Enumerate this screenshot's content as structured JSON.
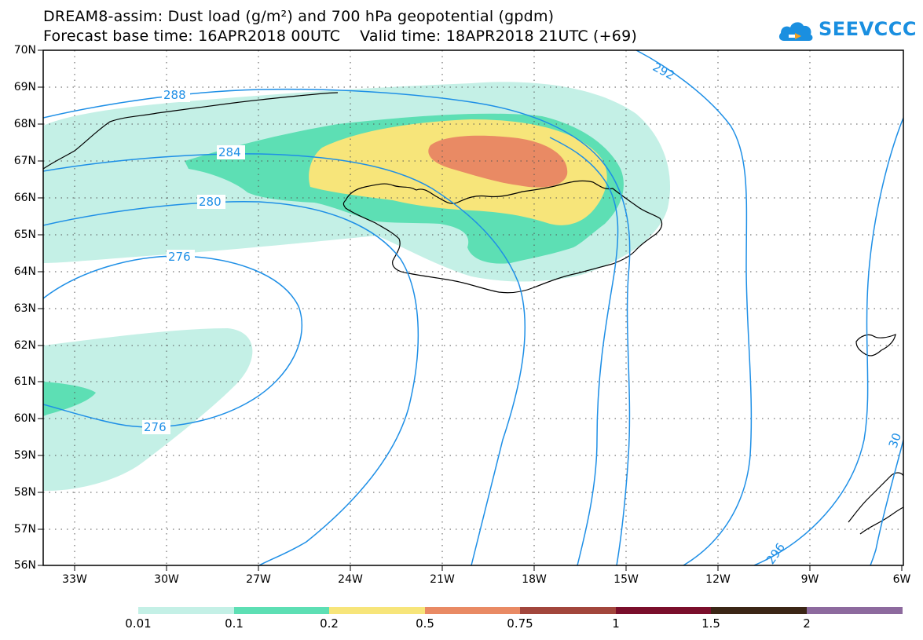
{
  "title": {
    "line1": "DREAM8-assim: Dust load (g/m²) and 700 hPa geopotential (gpdm)",
    "line2": "Forecast base time: 16APR2018 00UTC    Valid time: 18APR2018 21UTC (+69)"
  },
  "logo": {
    "text": "SEEVCCC",
    "icon": "cloud-icon",
    "color": "#1a8fe0"
  },
  "map": {
    "lat_labels": [
      "70N",
      "69N",
      "68N",
      "67N",
      "66N",
      "65N",
      "64N",
      "63N",
      "62N",
      "61N",
      "60N",
      "59N",
      "58N",
      "57N",
      "56N"
    ],
    "lon_labels": [
      "33W",
      "30W",
      "27W",
      "24W",
      "21W",
      "18W",
      "15W",
      "12W",
      "9W",
      "6W"
    ],
    "lat_range": [
      56,
      70
    ],
    "lon_range": [
      -34.2,
      -6
    ],
    "grid": "dotted",
    "contour_color": "#1e8fe6",
    "contour_labels": [
      "288",
      "284",
      "280",
      "276",
      "276",
      "292",
      "296",
      "30"
    ]
  },
  "colorbar": {
    "labels": [
      "0.01",
      "0.1",
      "0.2",
      "0.5",
      "0.75",
      "1",
      "1.5",
      "2"
    ],
    "colors": [
      "#c4f0e6",
      "#5ddfb4",
      "#f7e57a",
      "#e98a64",
      "#a2463c",
      "#7a0e2b",
      "#3b2616",
      "#8d6a9e"
    ]
  }
}
